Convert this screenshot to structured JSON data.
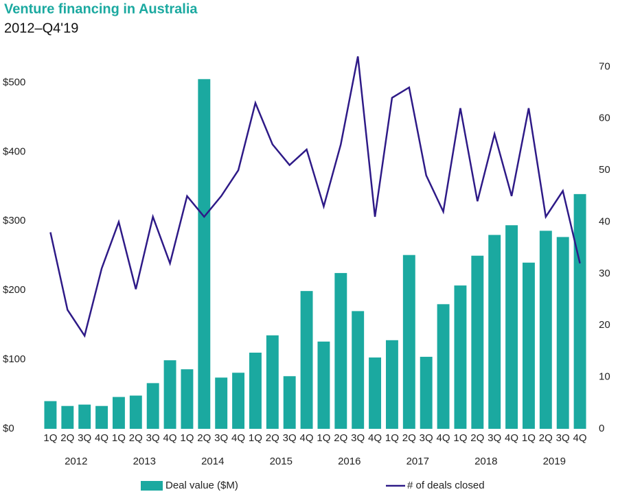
{
  "chart_data": {
    "type": "bar_line",
    "title": "Venture financing in Australia",
    "subtitle": "2012–Q4'19",
    "categories": [
      "1Q",
      "2Q",
      "3Q",
      "4Q",
      "1Q",
      "2Q",
      "3Q",
      "4Q",
      "1Q",
      "2Q",
      "3Q",
      "4Q",
      "1Q",
      "2Q",
      "3Q",
      "4Q",
      "1Q",
      "2Q",
      "3Q",
      "4Q",
      "1Q",
      "2Q",
      "3Q",
      "4Q",
      "1Q",
      "2Q",
      "3Q",
      "4Q",
      "1Q",
      "2Q",
      "3Q",
      "4Q"
    ],
    "years": [
      "2012",
      "2013",
      "2014",
      "2015",
      "2016",
      "2017",
      "2018",
      "2019"
    ],
    "series": [
      {
        "name": "Deal value ($M)",
        "type": "bar",
        "color": "#1ba9a0",
        "axis": "y",
        "values": [
          40,
          33,
          35,
          33,
          46,
          48,
          66,
          99,
          86,
          505,
          74,
          81,
          110,
          135,
          76,
          199,
          126,
          225,
          170,
          103,
          128,
          251,
          104,
          180,
          207,
          250,
          280,
          294,
          240,
          286,
          277,
          339
        ]
      },
      {
        "name": "# of deals closed",
        "type": "line",
        "color": "#2e1a87",
        "axis": "y2",
        "values": [
          38,
          23,
          18,
          31,
          40,
          27,
          41,
          32,
          45,
          41,
          45,
          50,
          63,
          55,
          51,
          54,
          43,
          55,
          72,
          41,
          64,
          66,
          49,
          42,
          62,
          44,
          57,
          45,
          62,
          41,
          46,
          32
        ]
      }
    ],
    "ylim": [
      0,
      540
    ],
    "yticks": [
      {
        "value": 0,
        "label": "$0"
      },
      {
        "value": 100,
        "label": "$100"
      },
      {
        "value": 200,
        "label": "$200"
      },
      {
        "value": 300,
        "label": "$300"
      },
      {
        "value": 400,
        "label": "$400"
      },
      {
        "value": 500,
        "label": "$500"
      }
    ],
    "y2lim": [
      0,
      72.3
    ],
    "y2ticks": [
      0,
      10,
      20,
      30,
      40,
      50,
      60,
      70
    ],
    "grid": false,
    "legend": "bottom"
  }
}
